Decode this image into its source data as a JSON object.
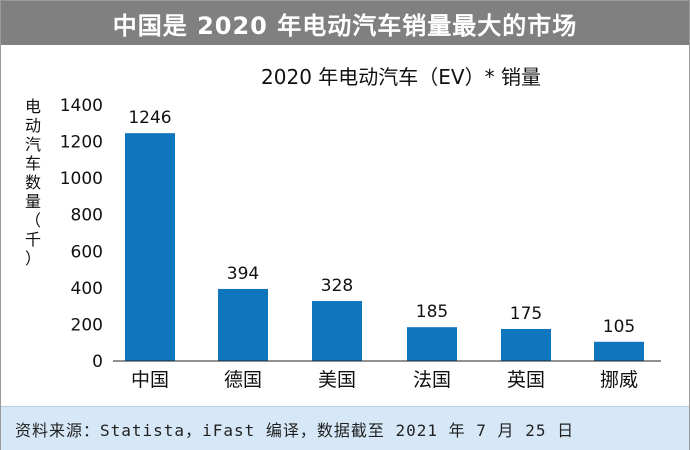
{
  "header": {
    "title": "中国是 2020 年电动汽车销量最大的市场"
  },
  "footer": {
    "source": "资料来源：Statista，iFast 编译，数据截至 2021 年 7 月 25 日"
  },
  "colors": {
    "bar": "#0f75bd",
    "header_bg": "#808080",
    "footer_bg": "#d6e8f7"
  },
  "chart_data": {
    "type": "bar",
    "title": "2020 年电动汽车（EV）* 销量",
    "ylabel": "电动汽车数量（千）",
    "ylabel_chars": [
      "电",
      "动",
      "汽",
      "车",
      "数",
      "量",
      "（",
      "千",
      "）"
    ],
    "xlabel": "",
    "categories": [
      "中国",
      "德国",
      "美国",
      "法国",
      "英国",
      "挪威"
    ],
    "values": [
      1246,
      394,
      328,
      185,
      175,
      105
    ],
    "ylim": [
      0,
      1400
    ],
    "yticks": [
      0,
      200,
      400,
      600,
      800,
      1000,
      1200,
      1400
    ],
    "grid": false,
    "data_labels": true
  }
}
